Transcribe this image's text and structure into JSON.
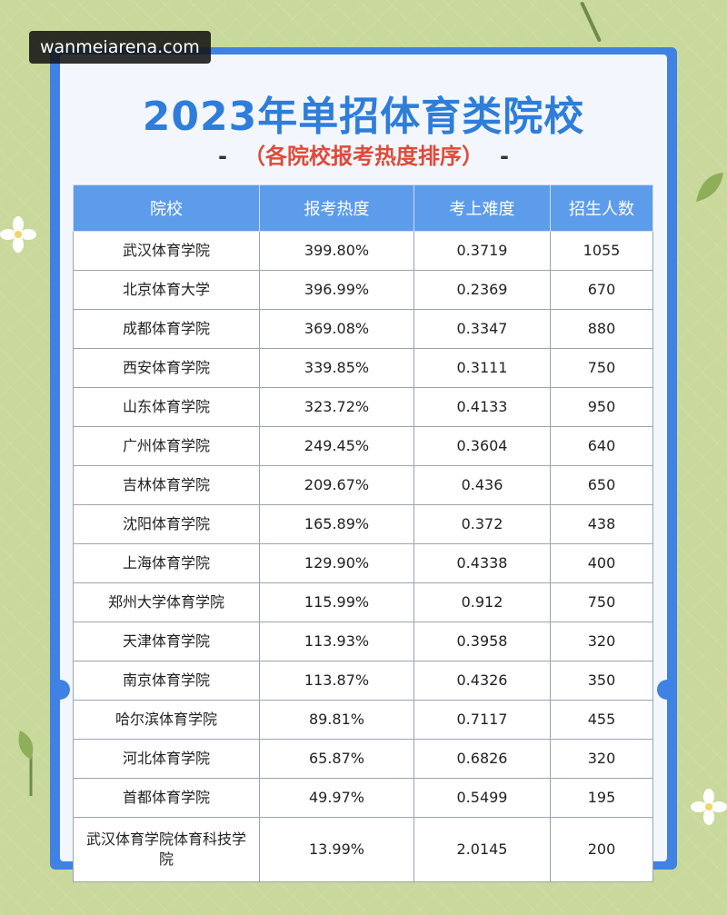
{
  "watermark": "wanmeiarena.com",
  "title": "2023年单招体育类院校",
  "subtitle": {
    "dash_left": "-",
    "text": "（各院校报考热度排序）",
    "dash_right": "-"
  },
  "table": {
    "headers": [
      "院校",
      "报考热度",
      "考上难度",
      "招生人数"
    ],
    "rows": [
      [
        "武汉体育学院",
        "399.80%",
        "0.3719",
        "1055"
      ],
      [
        "北京体育大学",
        "396.99%",
        "0.2369",
        "670"
      ],
      [
        "成都体育学院",
        "369.08%",
        "0.3347",
        "880"
      ],
      [
        "西安体育学院",
        "339.85%",
        "0.3111",
        "750"
      ],
      [
        "山东体育学院",
        "323.72%",
        "0.4133",
        "950"
      ],
      [
        "广州体育学院",
        "249.45%",
        "0.3604",
        "640"
      ],
      [
        "吉林体育学院",
        "209.67%",
        "0.436",
        "650"
      ],
      [
        "沈阳体育学院",
        "165.89%",
        "0.372",
        "438"
      ],
      [
        "上海体育学院",
        "129.90%",
        "0.4338",
        "400"
      ],
      [
        "郑州大学体育学院",
        "115.99%",
        "0.912",
        "750"
      ],
      [
        "天津体育学院",
        "113.93%",
        "0.3958",
        "320"
      ],
      [
        "南京体育学院",
        "113.87%",
        "0.4326",
        "350"
      ],
      [
        "哈尔滨体育学院",
        "89.81%",
        "0.7117",
        "455"
      ],
      [
        "河北体育学院",
        "65.87%",
        "0.6826",
        "320"
      ],
      [
        "首都体育学院",
        "49.97%",
        "0.5499",
        "195"
      ],
      [
        "武汉体育学院体育科技学院",
        "13.99%",
        "2.0145",
        "200"
      ]
    ]
  },
  "colors": {
    "frame": "#3f82e4",
    "title": "#2f7ddb",
    "subtitle": "#e04a3a",
    "header_bg": "#5d9ceb",
    "background": "#c9d89b"
  }
}
